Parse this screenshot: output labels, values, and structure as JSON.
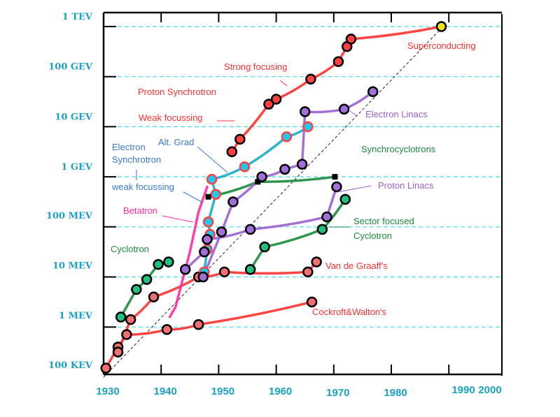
{
  "chart_data": {
    "type": "line",
    "title": "",
    "xlabel": "",
    "ylabel": "",
    "xlim": [
      1930,
      2000
    ],
    "ylim_log10_eV": [
      5,
      12
    ],
    "x_ticks": [
      {
        "value": 1930,
        "label": "1930"
      },
      {
        "value": 1940,
        "label": "1940"
      },
      {
        "value": 1950,
        "label": "1950"
      },
      {
        "value": 1960,
        "label": "1960"
      },
      {
        "value": 1970,
        "label": "1970"
      },
      {
        "value": 1980,
        "label": "1980"
      },
      {
        "value": 1990,
        "label": "1990"
      },
      {
        "value": 2000,
        "label": "2000"
      }
    ],
    "y_ticks": [
      {
        "value": 12,
        "label": "1 TEV"
      },
      {
        "value": 11,
        "label": "100 GEV"
      },
      {
        "value": 10,
        "label": "10 GEV"
      },
      {
        "value": 9,
        "label": "1 GEV"
      },
      {
        "value": 8,
        "label": "100 MEV"
      },
      {
        "value": 7,
        "label": "10 MEV"
      },
      {
        "value": 6,
        "label": "1 MEV"
      },
      {
        "value": 5,
        "label": "100 KEV"
      }
    ],
    "grid": "horizontal-dashed",
    "trend_line": {
      "from": [
        1930,
        5.0
      ],
      "to": [
        1989,
        12.0
      ],
      "style": "dashed"
    },
    "series": [
      {
        "name": "Cockroft&Walton's",
        "color": "#ff3030",
        "marker": "#f07070",
        "points": [
          [
            1930.4,
            5.18
          ],
          [
            1932.5,
            5.6
          ],
          [
            1934.0,
            5.85
          ],
          [
            1941.0,
            5.95
          ],
          [
            1946.5,
            6.05
          ],
          [
            1966.2,
            6.5
          ]
        ]
      },
      {
        "name": "Van de Graaff's",
        "color": "#ff3030",
        "marker": "#f07070",
        "points": [
          [
            1932.5,
            5.5
          ],
          [
            1934.7,
            6.15
          ],
          [
            1938.7,
            6.6
          ],
          [
            1946.5,
            7.0
          ],
          [
            1951.0,
            7.1
          ],
          [
            1965.5,
            7.1
          ],
          [
            1967.0,
            7.3
          ]
        ]
      },
      {
        "name": "Cyclotron",
        "color": "#1a8a3a",
        "marker": "#20c080",
        "points": [
          [
            1933.0,
            6.2
          ],
          [
            1935.7,
            6.75
          ],
          [
            1937.5,
            6.95
          ],
          [
            1939.5,
            7.25
          ],
          [
            1941.3,
            7.3
          ]
        ]
      },
      {
        "name": "Betatron",
        "color": "#ff2aa0",
        "marker": "#ff2aa0",
        "points": [
          [
            1941.5,
            6.2
          ],
          [
            1942.5,
            6.4
          ],
          [
            1945.0,
            7.5
          ],
          [
            1946.5,
            8.3
          ],
          [
            1948.0,
            8.8
          ]
        ]
      },
      {
        "name": "Electron Synchrotron weak focussing",
        "color": "#1aa8c8",
        "marker": "#20c8f0",
        "points": [
          [
            1947.5,
            7.1
          ],
          [
            1948.0,
            7.55
          ],
          [
            1948.5,
            7.85
          ],
          [
            1948.2,
            8.1
          ],
          [
            1949.5,
            8.65
          ],
          [
            1948.8,
            8.95
          ]
        ]
      },
      {
        "name": "Electron Synchrotron Alt. Grad",
        "color": "#1aa8c8",
        "marker": "#20c8f0",
        "points": [
          [
            1948.8,
            8.95
          ],
          [
            1954.5,
            9.2
          ],
          [
            1961.8,
            9.8
          ],
          [
            1965.5,
            10.0
          ]
        ]
      },
      {
        "name": "Synchrocyclotrons",
        "color": "#1a8a3a",
        "marker": "#000000",
        "points": [
          [
            1948.2,
            8.6
          ],
          [
            1956.8,
            8.9
          ],
          [
            1970.2,
            9.0
          ]
        ]
      },
      {
        "name": "Proton Synchrotron weak focussing",
        "color": "#ff3030",
        "marker": "#ff4040",
        "points": [
          [
            1952.3,
            9.5
          ],
          [
            1953.7,
            9.75
          ]
        ]
      },
      {
        "name": "Proton Synchrotron strong focusing",
        "color": "#ff3030",
        "marker": "#ff4040",
        "points": [
          [
            1953.7,
            9.75
          ],
          [
            1958.7,
            10.45
          ],
          [
            1960.0,
            10.55
          ],
          [
            1966.0,
            10.95
          ],
          [
            1970.8,
            11.3
          ],
          [
            1972.3,
            11.6
          ],
          [
            1973.0,
            11.75
          ]
        ]
      },
      {
        "name": "Superconducting",
        "color": "#ff3030",
        "marker": "#f0e020",
        "points": [
          [
            1973.0,
            11.75
          ],
          [
            1988.7,
            12.0
          ]
        ]
      },
      {
        "name": "Electron Linacs",
        "color": "#9a60d0",
        "marker": "#a070d8",
        "points": [
          [
            1947.3,
            7.0
          ],
          [
            1950.5,
            7.9
          ],
          [
            1952.5,
            8.5
          ],
          [
            1957.5,
            9.0
          ],
          [
            1961.5,
            9.15
          ],
          [
            1964.5,
            9.25
          ],
          [
            1965.0,
            10.3
          ],
          [
            1971.8,
            10.35
          ],
          [
            1976.8,
            10.7
          ]
        ]
      },
      {
        "name": "Proton Linacs",
        "color": "#9a60d0",
        "marker": "#a070d8",
        "points": [
          [
            1944.2,
            7.15
          ],
          [
            1947.5,
            7.5
          ],
          [
            1948.0,
            7.75
          ],
          [
            1955.5,
            7.95
          ],
          [
            1968.8,
            8.2
          ],
          [
            1970.5,
            8.8
          ]
        ]
      },
      {
        "name": "Sector focused Cyclotron",
        "color": "#1a8a3a",
        "marker": "#20c080",
        "points": [
          [
            1955.5,
            7.15
          ],
          [
            1958.0,
            7.6
          ],
          [
            1968.0,
            7.95
          ],
          [
            1972.0,
            8.55
          ]
        ]
      }
    ],
    "annotations": [
      {
        "text": "Superconducting",
        "color": "#ff3030"
      },
      {
        "text": "Strong focusing",
        "color": "#ff3030"
      },
      {
        "text": "Proton Synchrotron",
        "color": "#ff3030"
      },
      {
        "text": "Weak focussing",
        "color": "#ff3030"
      },
      {
        "text": "Electron Linacs",
        "color": "#9a60d0"
      },
      {
        "text": "Alt. Grad",
        "color": "#3a78d0"
      },
      {
        "text": "Electron",
        "color": "#3a78d0"
      },
      {
        "text": "Synchrotron",
        "color": "#3a78d0"
      },
      {
        "text": "Synchrocyclotrons",
        "color": "#1a8a3a"
      },
      {
        "text": "weak focussing",
        "color": "#3a78d0"
      },
      {
        "text": "Proton Linacs",
        "color": "#9a60d0"
      },
      {
        "text": "Betatron",
        "color": "#ff2aa0"
      },
      {
        "text": "Sector focused",
        "color": "#1a8a3a"
      },
      {
        "text": "Cyclotron",
        "color": "#1a8a3a"
      },
      {
        "text": "Cyclotron",
        "color": "#1a8a3a"
      },
      {
        "text": "Van de Graaff's",
        "color": "#ff3030"
      },
      {
        "text": "Cockroft&Walton's",
        "color": "#ff3030"
      }
    ]
  }
}
